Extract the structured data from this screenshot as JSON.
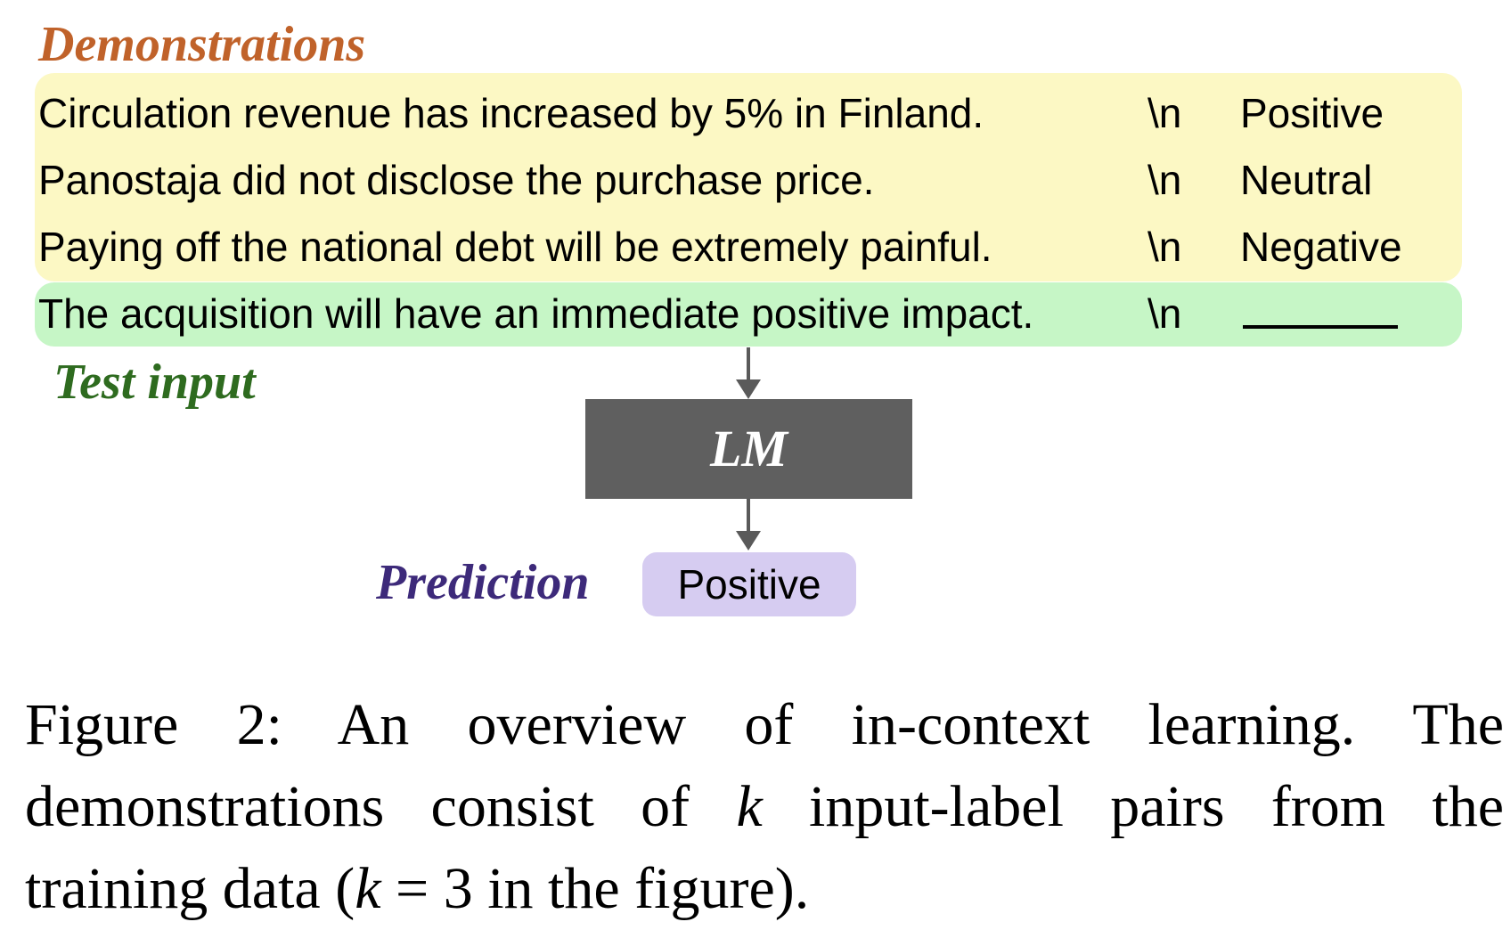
{
  "colors": {
    "demonstrations_label": "#c0622a",
    "test_input_label": "#2e6b1f",
    "prediction_label": "#3d2a7a",
    "demonstrations_box": "#fcf8c4",
    "test_input_box": "#c6f6c6",
    "lm_box": "#5f5f5f",
    "prediction_box": "#d6ccf1"
  },
  "demonstrations": {
    "label": "Demonstrations",
    "rows": [
      {
        "sentence": "Circulation revenue has increased by 5% in Finland.",
        "sep": "\\n",
        "label": "Positive"
      },
      {
        "sentence": "Panostaja did not disclose the purchase price.",
        "sep": "\\n",
        "label": "Neutral"
      },
      {
        "sentence": "Paying off the national debt will be extremely painful.",
        "sep": "\\n",
        "label": "Negative"
      }
    ]
  },
  "test_input": {
    "label": "Test input",
    "sentence": "The acquisition will have an immediate positive impact.",
    "sep": "\\n"
  },
  "model": {
    "label": "LM"
  },
  "prediction": {
    "label": "Prediction",
    "value": "Positive"
  },
  "caption": {
    "line1": "Figure 2:  An overview of in-context learning.  The",
    "line2_pre": "demonstrations consist of ",
    "line2_k": "k",
    "line2_post": " input-label pairs from the",
    "line3_pre": "training data (",
    "line3_k": "k",
    "line3_eq": " = 3",
    "line3_post": " in the figure)."
  }
}
